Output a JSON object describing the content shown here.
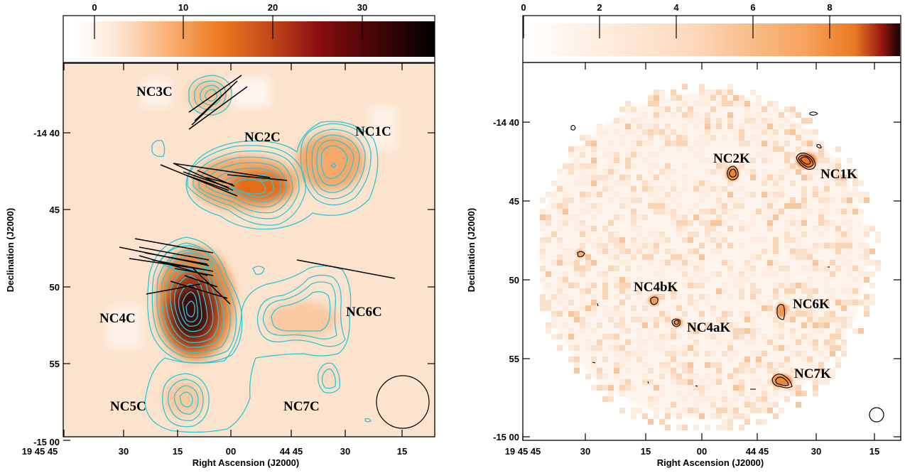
{
  "chart_data": [
    {
      "type": "heatmap",
      "panel": "left",
      "xlabel": "Right Ascension (J2000)",
      "ylabel": "Declination (J2000)",
      "x_ticks": [
        "19 45 45",
        "30",
        "15",
        "00",
        "44 45",
        "30",
        "15"
      ],
      "y_ticks": [
        "-14 40",
        "45",
        "50",
        "55",
        "-15 00"
      ],
      "colorbar": {
        "ticks": [
          "0",
          "10",
          "20",
          "30"
        ],
        "range": [
          -4,
          38
        ]
      },
      "grid": false,
      "contour_color": "#29c8d8",
      "labels": [
        "NC3C",
        "NC2C",
        "NC1C",
        "NC4C",
        "NC6C",
        "NC5C",
        "NC7C"
      ],
      "beam": "circle"
    },
    {
      "type": "heatmap",
      "panel": "right",
      "xlabel": "Right Ascension (J2000)",
      "ylabel": "Declination (J2000)",
      "x_ticks": [
        "19 45 45",
        "30",
        "15",
        "00",
        "44 45",
        "30",
        "15"
      ],
      "y_ticks": [
        "-14 40",
        "45",
        "50",
        "55",
        "-15 00"
      ],
      "colorbar": {
        "ticks": [
          "0",
          "2",
          "4",
          "6",
          "8"
        ],
        "range": [
          -0.3,
          9.7
        ]
      },
      "grid": false,
      "contour_color": "#000000",
      "labels": [
        "NC2K",
        "NC1K",
        "NC4bK",
        "NC6K",
        "NC4aK",
        "NC7K"
      ],
      "beam": "circle"
    }
  ]
}
